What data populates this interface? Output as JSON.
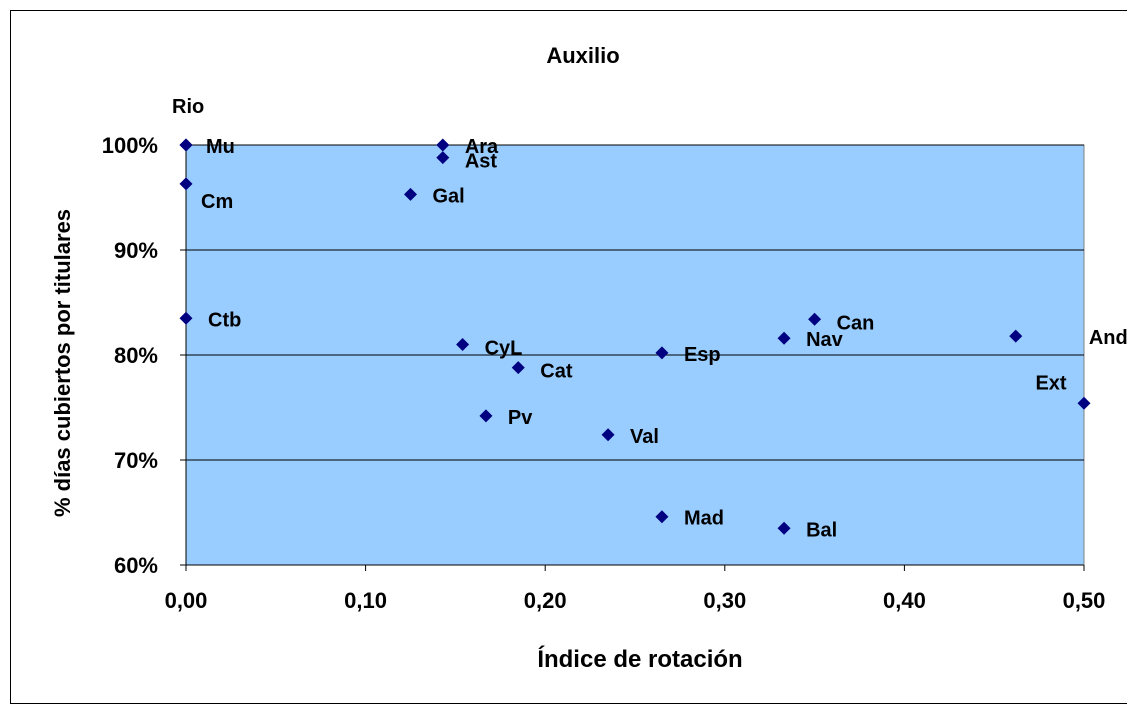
{
  "chart_data": {
    "type": "scatter",
    "title": "Auxilio",
    "xlabel": "Índice de rotación",
    "ylabel": "% días cubiertos por titulares",
    "xlim": [
      0,
      0.5
    ],
    "ylim": [
      0.6,
      1.0
    ],
    "x_ticks": [
      0,
      0.1,
      0.2,
      0.3,
      0.4,
      0.5
    ],
    "x_tick_labels": [
      "0,00",
      "0,10",
      "0,20",
      "0,30",
      "0,40",
      "0,50"
    ],
    "y_ticks": [
      0.6,
      0.7,
      0.8,
      0.9,
      1.0
    ],
    "y_tick_labels": [
      "60%",
      "70%",
      "80%",
      "90%",
      "100%"
    ],
    "grid": "horizontal",
    "legend": "none",
    "colors": {
      "plot_background": "#99CCFF",
      "marker": "#000080",
      "gridline": "#000000"
    },
    "points": [
      {
        "label": "Rio",
        "x": 0.0,
        "y": 1.0
      },
      {
        "label": "Mu",
        "x": 0.0,
        "y": 1.0
      },
      {
        "label": "Cm",
        "x": 0.0,
        "y": 0.963
      },
      {
        "label": "Ctb",
        "x": 0.0,
        "y": 0.835
      },
      {
        "label": "Ara",
        "x": 0.143,
        "y": 1.0
      },
      {
        "label": "Ast",
        "x": 0.143,
        "y": 0.988
      },
      {
        "label": "Gal",
        "x": 0.125,
        "y": 0.953
      },
      {
        "label": "CyL",
        "x": 0.154,
        "y": 0.81
      },
      {
        "label": "Cat",
        "x": 0.185,
        "y": 0.788
      },
      {
        "label": "Pv",
        "x": 0.167,
        "y": 0.742
      },
      {
        "label": "Val",
        "x": 0.235,
        "y": 0.724
      },
      {
        "label": "Esp",
        "x": 0.265,
        "y": 0.802
      },
      {
        "label": "Mad",
        "x": 0.265,
        "y": 0.646
      },
      {
        "label": "Bal",
        "x": 0.333,
        "y": 0.635
      },
      {
        "label": "Nav",
        "x": 0.333,
        "y": 0.816
      },
      {
        "label": "Can",
        "x": 0.35,
        "y": 0.834
      },
      {
        "label": "And",
        "x": 0.462,
        "y": 0.818
      },
      {
        "label": "Ext",
        "x": 0.5,
        "y": 0.754
      }
    ]
  }
}
